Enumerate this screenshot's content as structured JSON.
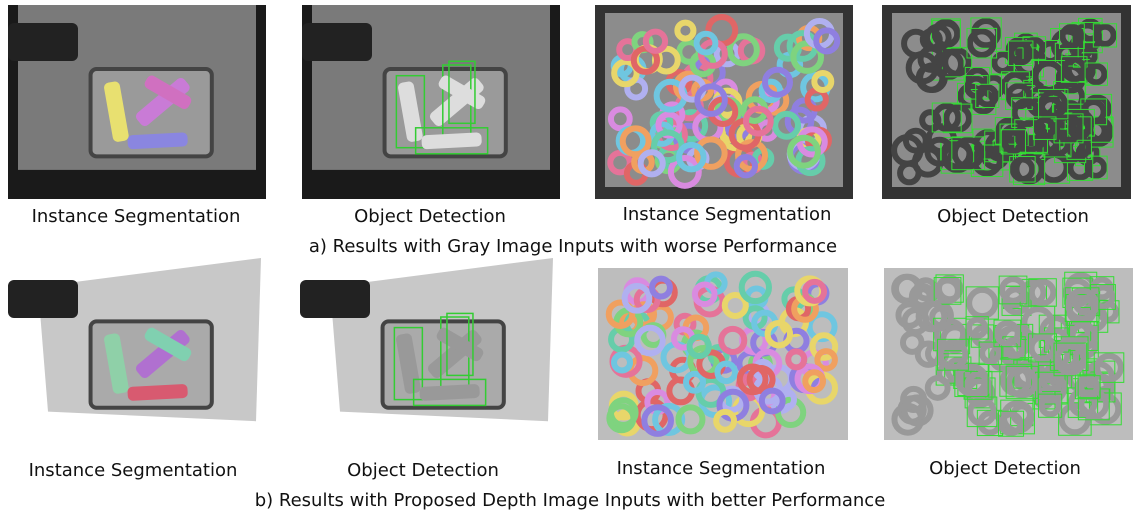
{
  "rows": [
    {
      "panels": [
        {
          "caption": "Instance Segmentation"
        },
        {
          "caption": "Object Detection"
        },
        {
          "caption": "Instance Segmentation"
        },
        {
          "caption": "Object Detection"
        }
      ],
      "caption": "a) Results with Gray Image Inputs with worse Performance"
    },
    {
      "panels": [
        {
          "caption": "Instance Segmentation"
        },
        {
          "caption": "Object Detection"
        },
        {
          "caption": "Instance Segmentation"
        },
        {
          "caption": "Object Detection"
        }
      ],
      "caption": "b) Results with Proposed Depth Image Inputs with better Performance"
    }
  ]
}
